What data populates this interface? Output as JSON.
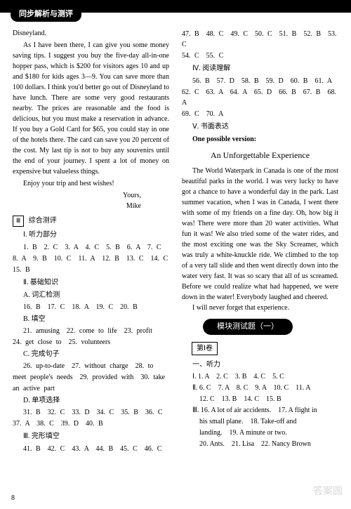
{
  "header": {
    "badge": "同步解析与测评"
  },
  "left": {
    "disneyland": "Disneyland.",
    "letter_p1": "As I have been there, I can give you some money saving tips. I suggest you buy the five-day all-in-one hopper pass, which is $200 for visitors ages 10 and up and $180 for kids ages 3—9. You can save more than 100 dollars. I think you'd better go out of Disneyland to have lunch. There are some very good restaurants nearby. The prices are reasonable and the food is delicious, but you must make a reservation in advance. If you buy a Gold Card for $65, you could stay in one of the hotels there. The card can save you 20 percent of the cost. My last tip is not to buy any souvenirs until the end of your journey. I spent a lot of money on expensive but valueless things.",
    "letter_p2": "Enjoy your trip and best wishes!",
    "sign1": "Yours,",
    "sign2": "Mike",
    "section3_box": "Ⅲ",
    "section3_title": "综合测评",
    "listen_title": "Ⅰ. 听力部分",
    "listen_a1": "1. B　2. C　3. A　4. C　5. B　6. A　7. C",
    "listen_a2": "8. A　9. B　10. C　11. A　12. B　13. C　14. C",
    "listen_a3": "15. B",
    "basic_title": "Ⅱ. 基础知识",
    "vocab_title": "A. 词汇检测",
    "vocab_a": "16. B　17. C　18. A　19. C　20. B",
    "fill_title": "B. 填空",
    "fill_a1": "21. amusing　22. come to life　23. profit",
    "fill_a2": "24. get close to　25. volunteers",
    "complete_title": "C. 完成句子",
    "complete_a1": "26. up-to-date　27. without charge　28. to",
    "complete_a2": "meet people's needs　29. provided with　30. take",
    "complete_a3": "an active part",
    "choice_title": "D. 单项选择",
    "choice_a1": "31. B　32. C　33. D　34. C　35. B　36. C",
    "choice_a2": "37. A　38. C　39. D　40. B",
    "cloze_title": "Ⅲ. 完形填空",
    "cloze_a": "41. B　42. C　43. A　44. B　45. C　46. C"
  },
  "right": {
    "cloze_cont1": "47. B　48. C　49. C　50. C　51. B　52. B　53. C",
    "cloze_cont2": "54. C　55. C",
    "reading_title": "Ⅳ. 阅读理解",
    "reading_a1": "56. B　57. D　58. B　59. D　60. B　61. A",
    "reading_a2": "62. C　63. A　64. A　65. D　66. B　67. B　68. A",
    "reading_a3": "69. C　70. A",
    "writing_title": "Ⅴ. 书面表达",
    "writing_sub": "One possible version:",
    "essay_title": "An Unforgettable Experience",
    "essay_p1": "The World Waterpark in Canada is one of the most beautiful parks in the world. I was very lucky to have got a chance to have a wonderful day in the park. Last summer vacation, when I was in Canada, I went there with some of my friends on a fine day. Oh, how big it was! There were more than 20 water activities. What fun it was! We also tried some of the water rides, and the most exciting one was the Sky Screamer, which was truly a white-knuckle ride. We climbed to the top of a very tall slide and then went directly down into the water very fast. It was so scary that all of us screamed. Before we could realize what had happened, we were down in the water! Everybody laughed and cheered.",
    "essay_p2": "I will never forget that experience.",
    "module_badge": "模块测试题（一）",
    "exam_section": "第Ⅰ卷",
    "exam_listen": "一、听力",
    "exam_r1": "Ⅰ. 1. A　2. C　3. B　4. C　5. C",
    "exam_r2": "Ⅱ. 6. C　7. A　8. C　9. A　10. C　11. A",
    "exam_r2b": "12. C　13. B　14. C　15. B",
    "exam_r3a": "Ⅲ. 16. A lot of air accidents.　17. A flight in",
    "exam_r3b": "his small plane.　18. Take-off and",
    "exam_r3c": "landing.　19. A minute or two.",
    "exam_r3d": "20. Ants.　21. Lisa　22. Nancy Brown"
  },
  "page_num": "8",
  "watermark": "答案圆"
}
